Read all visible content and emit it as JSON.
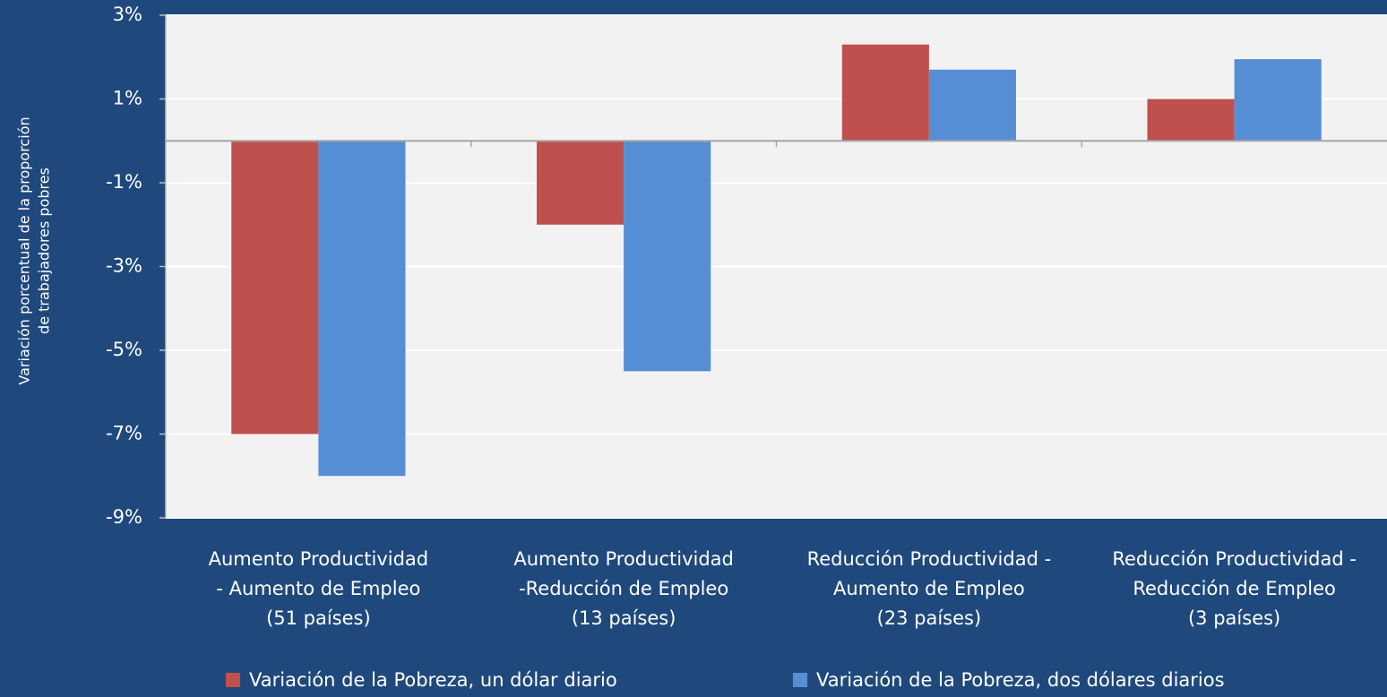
{
  "chart_data": {
    "type": "bar",
    "y_label": [
      "Variación porcentual de la proporción",
      "de trabajadores pobres"
    ],
    "categories": [
      [
        "Aumento Productividad",
        "- Aumento de Empleo",
        "(51 países)"
      ],
      [
        "Aumento Productividad",
        "-Reducción de Empleo",
        "(13 países)"
      ],
      [
        "Reducción Productividad -",
        "Aumento de Empleo",
        "(23 países)"
      ],
      [
        "Reducción Productividad -",
        "Reducción de Empleo",
        "(3 países)"
      ]
    ],
    "series": [
      {
        "name": "Variación de la Pobreza, un dólar diario",
        "color": "#c0504d",
        "values": [
          -7.0,
          -2.0,
          2.3,
          1.0
        ]
      },
      {
        "name": "Variación de la Pobreza, dos dólares diarios",
        "color": "#558ed5",
        "values": [
          -8.0,
          -5.5,
          1.7,
          1.95
        ]
      }
    ],
    "ylim": [
      -9,
      3
    ],
    "yticks": [
      {
        "value": -9,
        "label": "-9%"
      },
      {
        "value": -7,
        "label": "-7%"
      },
      {
        "value": -5,
        "label": "-5%"
      },
      {
        "value": -3,
        "label": "-3%"
      },
      {
        "value": -1,
        "label": "-1%"
      },
      {
        "value": 1,
        "label": "1%"
      },
      {
        "value": 3,
        "label": "3%"
      }
    ],
    "grid": true
  }
}
